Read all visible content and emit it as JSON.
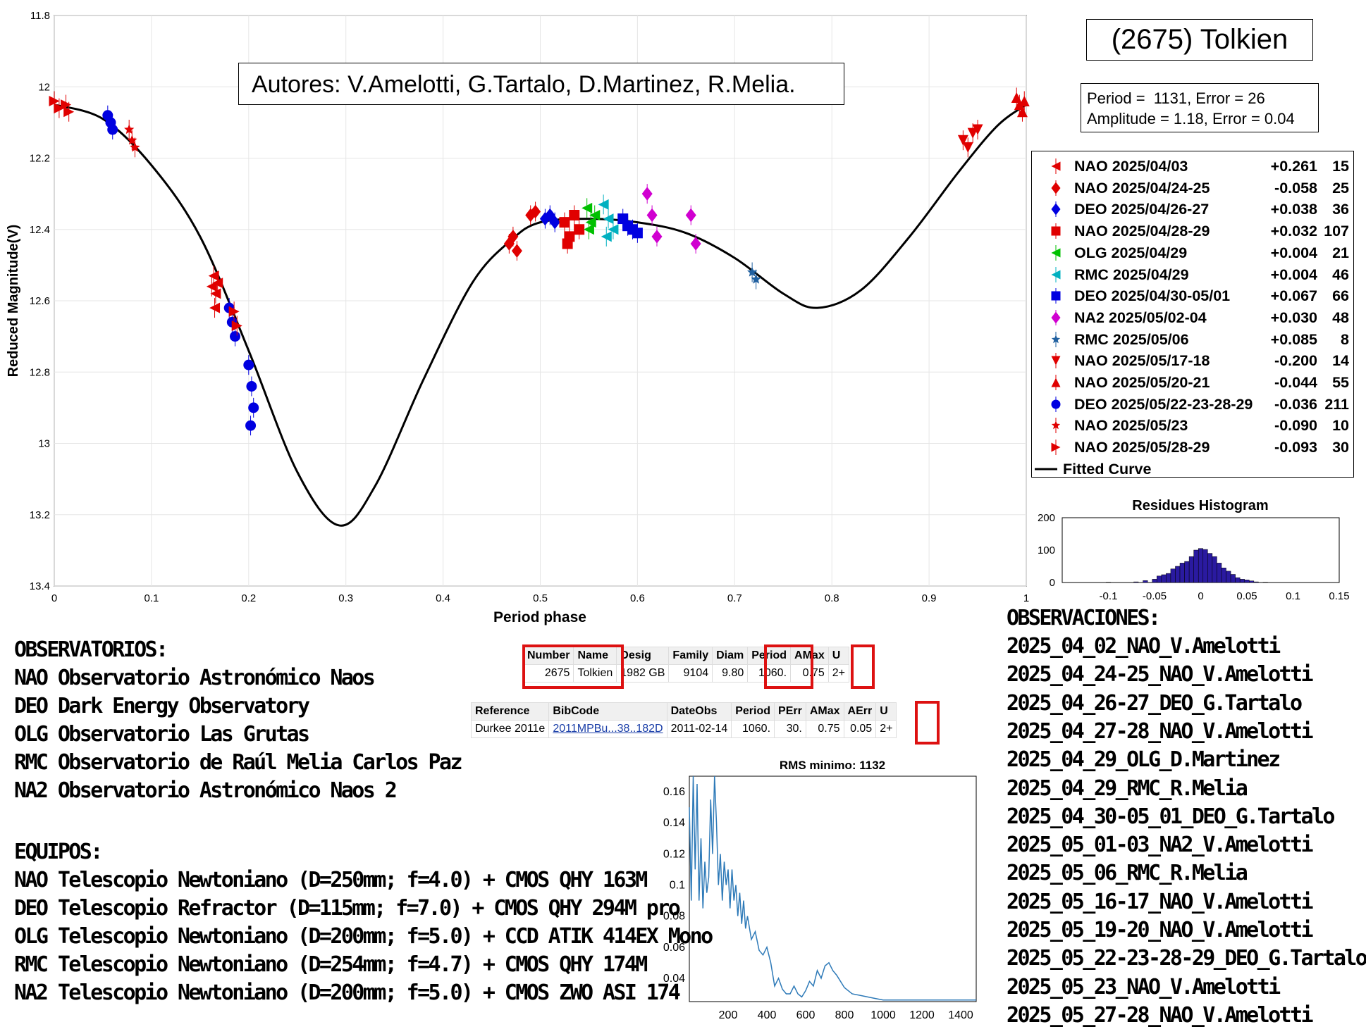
{
  "header": {
    "title": "(2675) Tolkien",
    "authors": "Autores: V.Amelotti, G.Tartalo, D.Martinez, R.Melia.",
    "period_line": "Period =  1131, Error = 26",
    "amplitude_line": "Amplitude = 1.18, Error = 0.04"
  },
  "chart_data": [
    {
      "type": "scatter",
      "xlabel": "Period phase",
      "ylabel": "Reduced Magnitude(V)",
      "xlim": [
        0,
        1
      ],
      "ylim": [
        11.8,
        13.4
      ],
      "y_inverted": true,
      "grid": true,
      "x_ticks": [
        "0",
        "0.1",
        "0.2",
        "0.3",
        "0.4",
        "0.5",
        "0.6",
        "0.7",
        "0.8",
        "0.9",
        "1"
      ],
      "y_ticks": [
        "11.8",
        "12",
        "12.2",
        "12.4",
        "12.6",
        "12.8",
        "13",
        "13.2",
        "13.4"
      ],
      "legend_position": "right",
      "fitted_curve": {
        "name": "Fitted Curve",
        "points": [
          [
            0,
            12.05
          ],
          [
            0.05,
            12.09
          ],
          [
            0.1,
            12.22
          ],
          [
            0.15,
            12.42
          ],
          [
            0.2,
            12.74
          ],
          [
            0.25,
            13.08
          ],
          [
            0.293,
            13.23
          ],
          [
            0.33,
            13.12
          ],
          [
            0.38,
            12.82
          ],
          [
            0.43,
            12.55
          ],
          [
            0.47,
            12.43
          ],
          [
            0.5,
            12.38
          ],
          [
            0.55,
            12.37
          ],
          [
            0.6,
            12.38
          ],
          [
            0.65,
            12.41
          ],
          [
            0.7,
            12.48
          ],
          [
            0.75,
            12.58
          ],
          [
            0.785,
            12.62
          ],
          [
            0.83,
            12.57
          ],
          [
            0.88,
            12.42
          ],
          [
            0.93,
            12.24
          ],
          [
            0.97,
            12.11
          ],
          [
            1.0,
            12.05
          ]
        ]
      },
      "series": [
        {
          "name": "NAO 2025/04/03",
          "offset": "+0.261",
          "count": "15",
          "color": "#e00000",
          "marker": "triangle-left",
          "points": [
            [
              0.162,
              12.56
            ],
            [
              0.164,
              12.53
            ],
            [
              0.166,
              12.58
            ],
            [
              0.168,
              12.55
            ],
            [
              0.165,
              12.62
            ]
          ]
        },
        {
          "name": "NAO 2025/04/24-25",
          "offset": "-0.058",
          "count": "25",
          "color": "#e00000",
          "marker": "diamond",
          "points": [
            [
              0.468,
              12.44
            ],
            [
              0.472,
              12.42
            ],
            [
              0.476,
              12.46
            ],
            [
              0.49,
              12.36
            ],
            [
              0.495,
              12.35
            ]
          ]
        },
        {
          "name": "DEO 2025/04/26-27",
          "offset": "+0.038",
          "count": "36",
          "color": "#0000e0",
          "marker": "diamond",
          "points": [
            [
              0.505,
              12.37
            ],
            [
              0.51,
              12.36
            ],
            [
              0.515,
              12.38
            ]
          ]
        },
        {
          "name": "NAO 2025/04/28-29",
          "offset": "+0.032",
          "count": "107",
          "color": "#e00000",
          "marker": "square",
          "points": [
            [
              0.525,
              12.38
            ],
            [
              0.53,
              12.42
            ],
            [
              0.535,
              12.36
            ],
            [
              0.54,
              12.4
            ],
            [
              0.528,
              12.44
            ]
          ]
        },
        {
          "name": "OLG 2025/04/29",
          "offset": "+0.004",
          "count": "21",
          "color": "#00c000",
          "marker": "triangle-left",
          "points": [
            [
              0.548,
              12.34
            ],
            [
              0.552,
              12.38
            ],
            [
              0.556,
              12.36
            ],
            [
              0.55,
              12.4
            ]
          ]
        },
        {
          "name": "RMC 2025/04/29",
          "offset": "+0.004",
          "count": "46",
          "color": "#00b0c0",
          "marker": "triangle-left",
          "points": [
            [
              0.565,
              12.33
            ],
            [
              0.57,
              12.37
            ],
            [
              0.575,
              12.4
            ],
            [
              0.568,
              12.42
            ]
          ]
        },
        {
          "name": "DEO 2025/04/30-05/01",
          "offset": "+0.067",
          "count": "66",
          "color": "#0000e0",
          "marker": "square",
          "points": [
            [
              0.585,
              12.37
            ],
            [
              0.59,
              12.39
            ],
            [
              0.595,
              12.4
            ],
            [
              0.6,
              12.41
            ]
          ]
        },
        {
          "name": "NA2 2025/05/02-04",
          "offset": "+0.030",
          "count": "48",
          "color": "#d000d0",
          "marker": "diamond",
          "points": [
            [
              0.61,
              12.3
            ],
            [
              0.615,
              12.36
            ],
            [
              0.62,
              12.42
            ],
            [
              0.655,
              12.36
            ],
            [
              0.66,
              12.44
            ]
          ]
        },
        {
          "name": "RMC 2025/05/06",
          "offset": "+0.085",
          "count": "8",
          "color": "#2060a0",
          "marker": "star",
          "points": [
            [
              0.718,
              12.52
            ],
            [
              0.722,
              12.54
            ]
          ]
        },
        {
          "name": "NAO 2025/05/17-18",
          "offset": "-0.200",
          "count": "14",
          "color": "#e00000",
          "marker": "triangle-down",
          "points": [
            [
              0.935,
              12.15
            ],
            [
              0.94,
              12.17
            ],
            [
              0.945,
              12.13
            ],
            [
              0.95,
              12.12
            ]
          ]
        },
        {
          "name": "NAO 2025/05/20-21",
          "offset": "-0.044",
          "count": "55",
          "color": "#e00000",
          "marker": "triangle-up",
          "points": [
            [
              0.99,
              12.03
            ],
            [
              0.993,
              12.05
            ],
            [
              0.996,
              12.07
            ],
            [
              0.998,
              12.04
            ]
          ]
        },
        {
          "name": "DEO 2025/05/22-23-28-29",
          "offset": "-0.036",
          "count": "211",
          "color": "#0000e0",
          "marker": "circle",
          "points": [
            [
              0.055,
              12.08
            ],
            [
              0.058,
              12.1
            ],
            [
              0.06,
              12.12
            ],
            [
              0.18,
              12.62
            ],
            [
              0.183,
              12.66
            ],
            [
              0.186,
              12.7
            ],
            [
              0.2,
              12.78
            ],
            [
              0.203,
              12.84
            ],
            [
              0.205,
              12.9
            ],
            [
              0.202,
              12.95
            ]
          ]
        },
        {
          "name": "NAO 2025/05/23",
          "offset": "-0.090",
          "count": "10",
          "color": "#e00000",
          "marker": "star",
          "points": [
            [
              0.077,
              12.12
            ],
            [
              0.08,
              12.15
            ],
            [
              0.083,
              12.17
            ]
          ]
        },
        {
          "name": "NAO 2025/05/28-29",
          "offset": "-0.093",
          "count": "30",
          "color": "#e00000",
          "marker": "triangle-right",
          "points": [
            [
              0.0,
              12.04
            ],
            [
              0.005,
              12.06
            ],
            [
              0.012,
              12.05
            ],
            [
              0.015,
              12.07
            ],
            [
              0.185,
              12.63
            ],
            [
              0.188,
              12.67
            ]
          ]
        }
      ]
    },
    {
      "type": "bar",
      "title": "Residues Histogram",
      "xlim": [
        -0.15,
        0.15
      ],
      "ylim": [
        0,
        200
      ],
      "x_ticks": [
        "-0.1",
        "-0.05",
        "0",
        "0.05",
        "0.1",
        "0.15"
      ],
      "y_ticks": [
        "0",
        "100",
        "200"
      ],
      "color": "#2a1aa0",
      "bin_centers": [
        -0.1,
        -0.07,
        -0.06,
        -0.05,
        -0.045,
        -0.04,
        -0.035,
        -0.03,
        -0.025,
        -0.02,
        -0.015,
        -0.01,
        -0.005,
        0.0,
        0.005,
        0.01,
        0.015,
        0.02,
        0.025,
        0.03,
        0.035,
        0.04,
        0.045,
        0.05,
        0.055,
        0.06,
        0.07
      ],
      "values": [
        1,
        2,
        6,
        10,
        20,
        24,
        28,
        42,
        50,
        60,
        65,
        80,
        100,
        105,
        102,
        90,
        80,
        60,
        45,
        35,
        25,
        15,
        10,
        8,
        5,
        2,
        1
      ]
    },
    {
      "type": "line",
      "title": "RMS minimo: 1132",
      "xlim": [
        0,
        1480
      ],
      "ylim": [
        0.025,
        0.17
      ],
      "x_ticks": [
        "200",
        "400",
        "600",
        "800",
        "1000",
        "1200",
        "1400"
      ],
      "y_ticks": [
        "0.04",
        "0.06",
        "0.08",
        "0.1",
        "0.12",
        "0.14",
        "0.16"
      ],
      "color": "#2e7ab8",
      "x": [
        0,
        10,
        20,
        30,
        40,
        50,
        60,
        70,
        80,
        90,
        100,
        110,
        120,
        130,
        140,
        150,
        160,
        170,
        180,
        190,
        200,
        210,
        220,
        230,
        240,
        250,
        260,
        270,
        280,
        290,
        300,
        320,
        340,
        360,
        380,
        400,
        420,
        440,
        460,
        480,
        500,
        520,
        540,
        560,
        580,
        600,
        620,
        640,
        660,
        680,
        700,
        720,
        740,
        760,
        780,
        800,
        840,
        880,
        920,
        960,
        1000,
        1100,
        1200,
        1300,
        1400,
        1480
      ],
      "values": [
        0.15,
        0.09,
        0.17,
        0.11,
        0.165,
        0.09,
        0.13,
        0.085,
        0.115,
        0.095,
        0.105,
        0.155,
        0.12,
        0.17,
        0.14,
        0.1,
        0.12,
        0.09,
        0.115,
        0.1,
        0.11,
        0.085,
        0.11,
        0.09,
        0.1,
        0.08,
        0.095,
        0.075,
        0.09,
        0.072,
        0.08,
        0.065,
        0.07,
        0.058,
        0.055,
        0.06,
        0.05,
        0.035,
        0.04,
        0.033,
        0.03,
        0.03,
        0.035,
        0.03,
        0.028,
        0.032,
        0.038,
        0.035,
        0.045,
        0.04,
        0.048,
        0.05,
        0.045,
        0.042,
        0.038,
        0.034,
        0.03,
        0.029,
        0.028,
        0.027,
        0.026,
        0.026,
        0.026,
        0.026,
        0.026,
        0.026
      ]
    }
  ],
  "legend_fitted": "Fitted Curve",
  "observatorios": {
    "heading": "OBSERVATORIOS:",
    "items": [
      "NAO Observatorio Astronómico Naos",
      "DEO Dark Energy Observatory",
      "OLG Observatorio Las Grutas",
      "RMC Observatorio de Raúl Melia Carlos Paz",
      "NA2 Observatorio Astronómico Naos 2"
    ]
  },
  "equipos": {
    "heading": "EQUIPOS:",
    "items": [
      "NAO Telescopio Newtoniano (D=250mm; f=4.0) + CMOS QHY 163M",
      "DEO Telescopio Refractor (D=115mm; f=7.0) + CMOS QHY 294M pro",
      "OLG Telescopio Newtoniano (D=200mm; f=5.0) + CCD ATIK 414EX Mono",
      "RMC Telescopio Newtoniano (D=254mm; f=4.7) + CMOS QHY 174M",
      "NA2 Telescopio Newtoniano (D=200mm; f=5.0) + CMOS ZWO ASI 174"
    ]
  },
  "observaciones": {
    "heading": "OBSERVACIONES:",
    "items": [
      "2025_04_02_NAO_V.Amelotti",
      "2025_04_24-25_NAO_V.Amelotti",
      "2025_04_26-27_DEO_G.Tartalo",
      "2025_04_27-28_NAO_V.Amelotti",
      "2025_04_29_OLG_D.Martinez",
      "2025_04_29_RMC_R.Melia",
      "2025_04_30-05_01_DEO_G.Tartalo",
      "2025_05_01-03_NA2_V.Amelotti",
      "2025_05_06_RMC_R.Melia",
      "2025_05_16-17_NAO_V.Amelotti",
      "2025_05_19-20_NAO_V.Amelotti",
      "2025_05_22-23-28-29_DEO_G.Tartalo",
      "2025_05_23_NAO_V.Amelotti",
      "2025_05_27-28_NAO_V.Amelotti"
    ]
  },
  "lcdb_table1": {
    "headers": [
      "Number",
      "Name",
      "Desig",
      "Family",
      "Diam",
      "Period",
      "AMax",
      "U"
    ],
    "row": [
      "2675",
      "Tolkien",
      "1982 GB",
      "9104",
      "9.80",
      "1060.",
      "0.75",
      "2+"
    ]
  },
  "lcdb_table2": {
    "headers": [
      "Reference",
      "BibCode",
      "DateObs",
      "Period",
      "PErr",
      "AMax",
      "AErr",
      "U"
    ],
    "row": [
      "Durkee 2011e",
      "2011MPBu...38..182D",
      "2011-02-14",
      "1060.",
      "30.",
      "0.75",
      "0.05",
      "2+"
    ]
  }
}
